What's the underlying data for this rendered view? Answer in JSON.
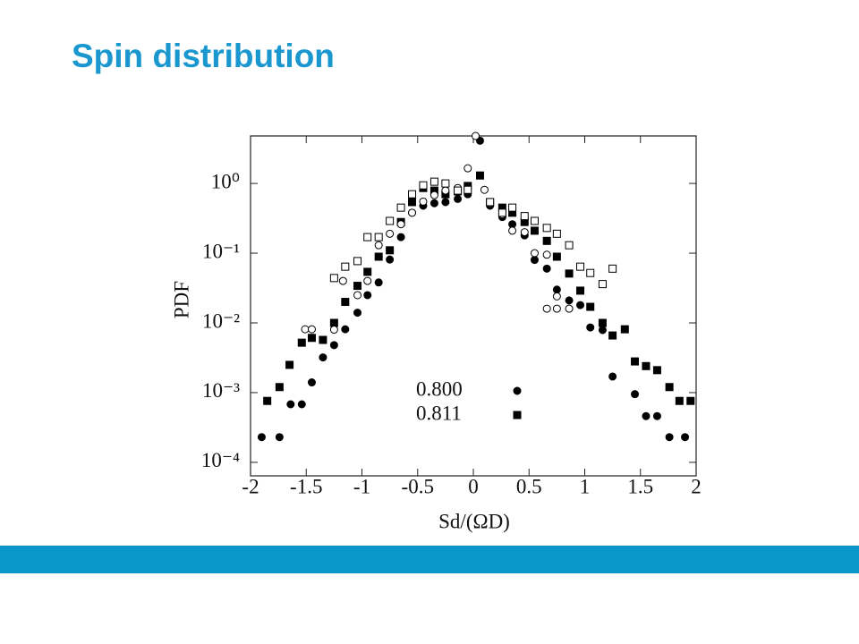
{
  "title": "Spin distribution",
  "chart_data": {
    "type": "scatter",
    "xlabel": "Sd/(ΩD)",
    "ylabel": "PDF",
    "xlim": [
      -2,
      2
    ],
    "xticks": [
      -2,
      -1.5,
      -1,
      -0.5,
      0,
      0.5,
      1,
      1.5,
      2
    ],
    "ylim": [
      6.4e-05,
      4.8
    ],
    "log_y": true,
    "yticks": [
      {
        "value": 1,
        "label": "10⁰"
      },
      {
        "value": 0.1,
        "label": "10⁻¹"
      },
      {
        "value": 0.01,
        "label": "10⁻²"
      },
      {
        "value": 0.001,
        "label": "10⁻³"
      },
      {
        "value": 0.0001,
        "label": "10⁻⁴"
      }
    ],
    "legend": "bottom-center",
    "series": [
      {
        "name": "0.800",
        "marker": "circle",
        "filled": true,
        "color": "#000",
        "x": [
          -1.9,
          -1.74,
          -1.64,
          -1.54,
          -1.45,
          -1.35,
          -1.25,
          -1.15,
          -1.04,
          -0.95,
          -0.85,
          -0.75,
          -0.65,
          -0.55,
          -0.45,
          -0.35,
          -0.25,
          -0.14,
          -0.05,
          0.06,
          0.15,
          0.26,
          0.35,
          0.46,
          0.55,
          0.66,
          0.75,
          0.86,
          0.96,
          1.05,
          1.16,
          1.25,
          1.45,
          1.55,
          1.65,
          1.76,
          1.9
        ],
        "values": [
          0.00023,
          0.00023,
          0.00068,
          0.00068,
          0.0014,
          0.0032,
          0.0048,
          0.0081,
          0.014,
          0.025,
          0.038,
          0.081,
          0.17,
          0.38,
          0.48,
          0.52,
          0.54,
          0.6,
          0.7,
          4.1,
          0.48,
          0.33,
          0.26,
          0.18,
          0.08,
          0.06,
          0.03,
          0.021,
          0.018,
          0.0086,
          0.0079,
          0.0017,
          0.00095,
          0.00046,
          0.00046,
          0.00023,
          0.00023
        ]
      },
      {
        "name": "0.811",
        "marker": "square",
        "filled": true,
        "color": "#000",
        "x": [
          -1.85,
          -1.74,
          -1.65,
          -1.54,
          -1.45,
          -1.35,
          -1.25,
          -1.15,
          -1.04,
          -0.95,
          -0.85,
          -0.75,
          -0.65,
          -0.55,
          -0.45,
          -0.35,
          -0.25,
          -0.14,
          -0.05,
          0.06,
          0.15,
          0.26,
          0.35,
          0.46,
          0.55,
          0.66,
          0.75,
          0.86,
          0.96,
          1.05,
          1.16,
          1.25,
          1.36,
          1.45,
          1.55,
          1.65,
          1.76,
          1.85,
          1.95
        ],
        "values": [
          0.00076,
          0.0012,
          0.0025,
          0.0052,
          0.0061,
          0.0057,
          0.01,
          0.02,
          0.034,
          0.054,
          0.089,
          0.11,
          0.28,
          0.54,
          0.86,
          0.79,
          0.7,
          0.77,
          0.92,
          1.3,
          0.54,
          0.45,
          0.38,
          0.28,
          0.21,
          0.15,
          0.089,
          0.051,
          0.029,
          0.017,
          0.01,
          0.0066,
          0.0081,
          0.0028,
          0.0024,
          0.0021,
          0.0012,
          0.00076,
          0.00076
        ]
      },
      {
        "marker": "circle",
        "filled": false,
        "color": "#000",
        "x": [
          -1.51,
          -1.45,
          -1.25,
          -1.17,
          -1.04,
          -0.95,
          -0.85,
          -0.75,
          -0.65,
          -0.55,
          -0.45,
          -0.35,
          -0.25,
          -0.14,
          -0.05,
          0.02,
          0.1,
          0.15,
          0.26,
          0.35,
          0.46,
          0.55,
          0.66,
          0.66,
          0.75,
          0.75,
          0.86
        ],
        "values": [
          0.0081,
          0.0081,
          0.008,
          0.04,
          0.025,
          0.04,
          0.13,
          0.19,
          0.26,
          0.38,
          0.55,
          0.68,
          0.79,
          0.86,
          1.65,
          4.8,
          0.81,
          0.52,
          0.36,
          0.21,
          0.2,
          0.1,
          0.095,
          0.016,
          0.024,
          0.016,
          0.016
        ]
      },
      {
        "marker": "square",
        "filled": false,
        "color": "#000",
        "x": [
          -1.25,
          -1.15,
          -1.04,
          -0.95,
          -0.85,
          -0.75,
          -0.65,
          -0.55,
          -0.45,
          -0.35,
          -0.25,
          -0.14,
          -0.05,
          0.15,
          0.26,
          0.35,
          0.46,
          0.55,
          0.66,
          0.75,
          0.86,
          0.96,
          1.05,
          1.16,
          1.25
        ],
        "values": [
          0.044,
          0.064,
          0.077,
          0.17,
          0.17,
          0.29,
          0.45,
          0.7,
          0.94,
          1.06,
          1.0,
          0.79,
          0.81,
          0.54,
          0.38,
          0.45,
          0.34,
          0.29,
          0.23,
          0.19,
          0.13,
          0.064,
          0.052,
          0.036,
          0.06
        ]
      }
    ]
  }
}
